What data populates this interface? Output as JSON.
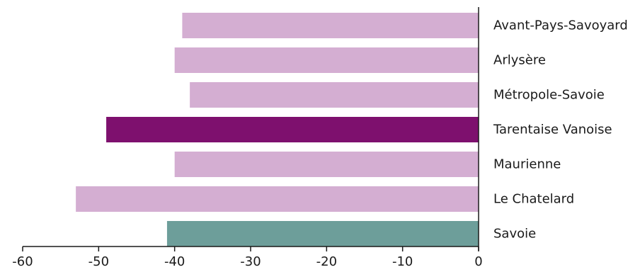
{
  "chart_data": {
    "type": "bar",
    "orientation": "horizontal",
    "categories": [
      "Avant-Pays-Savoyard",
      "Arlysère",
      "Métropole-Savoie",
      "Tarentaise Vanoise",
      "Maurienne",
      "Le Chatelard",
      "Savoie"
    ],
    "values": [
      -39,
      -40,
      -38,
      -49,
      -40,
      -53,
      -41
    ],
    "bar_colors": [
      "#d4aed2",
      "#d4aed2",
      "#d4aed2",
      "#7e106e",
      "#d4aed2",
      "#d4aed2",
      "#6d9e9a"
    ],
    "x_ticks": [
      -60,
      -50,
      -40,
      -30,
      -20,
      -10,
      0
    ],
    "xlim": [
      -60,
      0
    ],
    "title": "",
    "xlabel": "",
    "ylabel": "",
    "grid": false,
    "legend": "none"
  }
}
